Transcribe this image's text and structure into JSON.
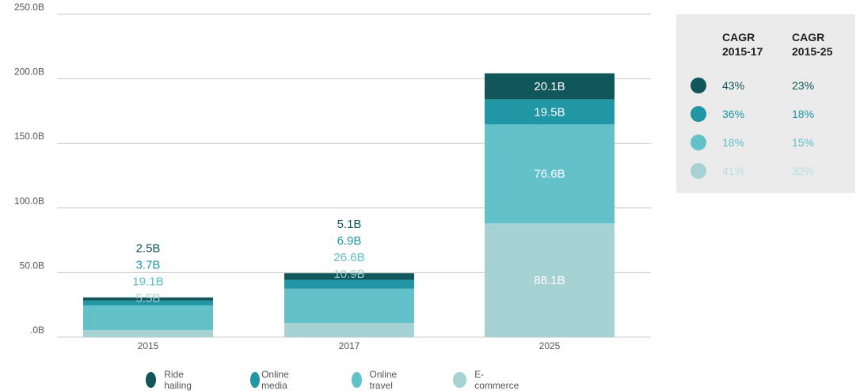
{
  "chart_data": {
    "type": "bar",
    "stacked": true,
    "categories": [
      "2015",
      "2017",
      "2025"
    ],
    "series": [
      {
        "name": "E-commerce",
        "color": "#a6d2d4",
        "label_color": "#9fcfd1",
        "values": [
          5.5,
          10.9,
          88.1
        ],
        "labels": [
          "5.5B",
          "10.9B",
          "88.1B"
        ]
      },
      {
        "name": "Online travel",
        "color": "#62c1c9",
        "label_color": "#5ebfc7",
        "values": [
          19.1,
          26.6,
          76.6
        ],
        "labels": [
          "19.1B",
          "26.6B",
          "76.6B"
        ]
      },
      {
        "name": "Online media",
        "color": "#2197a6",
        "label_color": "#2197a6",
        "values": [
          3.7,
          6.9,
          19.5
        ],
        "labels": [
          "3.7B",
          "6.9B",
          "19.5B"
        ]
      },
      {
        "name": "Ride hailing",
        "color": "#10565a",
        "label_color": "#10565a",
        "values": [
          2.5,
          5.1,
          20.1
        ],
        "labels": [
          "2.5B",
          "5.1B",
          "20.1B"
        ]
      }
    ],
    "yticks": [
      ".0B",
      "50.0B",
      "100.0B",
      "150.0B",
      "200.0B",
      "250.0B"
    ],
    "ylim": [
      0,
      250
    ],
    "grid": true,
    "legend_position": "bottom"
  },
  "legend_items": [
    {
      "label": "Ride hailing",
      "color": "#10565a"
    },
    {
      "label": "Online media",
      "color": "#2197a6"
    },
    {
      "label": "Online travel",
      "color": "#62c1c9"
    },
    {
      "label": "E-commerce",
      "color": "#a6d2d4"
    }
  ],
  "cagr": {
    "header1": "CAGR\n2015-17",
    "header2": "CAGR\n2015-25",
    "rows": [
      {
        "color": "#10565a",
        "text_color": "#10565a",
        "v1": "43%",
        "v2": "23%"
      },
      {
        "color": "#2197a6",
        "text_color": "#2197a6",
        "v1": "36%",
        "v2": "18%"
      },
      {
        "color": "#62c1c9",
        "text_color": "#5ebfc7",
        "v1": "18%",
        "v2": "15%"
      },
      {
        "color": "#a6d2d4",
        "text_color": "#b6dcde",
        "v1": "41%",
        "v2": "32%"
      }
    ]
  }
}
